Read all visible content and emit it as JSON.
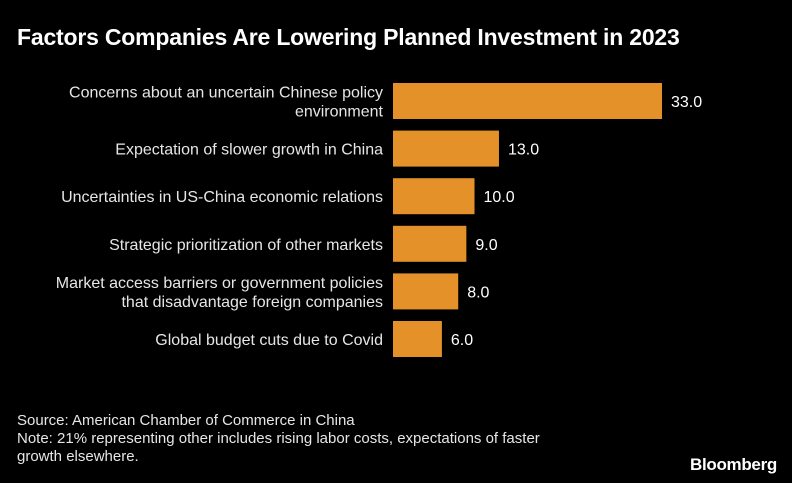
{
  "chart_data": {
    "type": "bar",
    "orientation": "horizontal",
    "title": "Factors Companies Are Lowering Planned Investment in 2023",
    "categories": [
      [
        "Concerns about an uncertain Chinese policy",
        "environment"
      ],
      [
        "Expectation of slower growth in China"
      ],
      [
        "Uncertainties in US-China economic relations"
      ],
      [
        "Strategic prioritization of other markets"
      ],
      [
        "Market access barriers or government policies",
        "that disadvantage foreign companies"
      ],
      [
        "Global budget cuts due to Covid"
      ]
    ],
    "values": [
      33.0,
      13.0,
      10.0,
      9.0,
      8.0,
      6.0
    ],
    "value_labels": [
      "33.0",
      "13.0",
      "10.0",
      "9.0",
      "8.0",
      "6.0"
    ],
    "xlim": [
      0,
      33.0
    ],
    "grid": false,
    "bar_color": "#e39128"
  },
  "footer": {
    "source": "Source: American Chamber of Commerce in China",
    "note_line1": "Note: 21% representing other includes rising labor costs, expectations of faster",
    "note_line2": "growth elsewhere."
  },
  "brand": "Bloomberg"
}
